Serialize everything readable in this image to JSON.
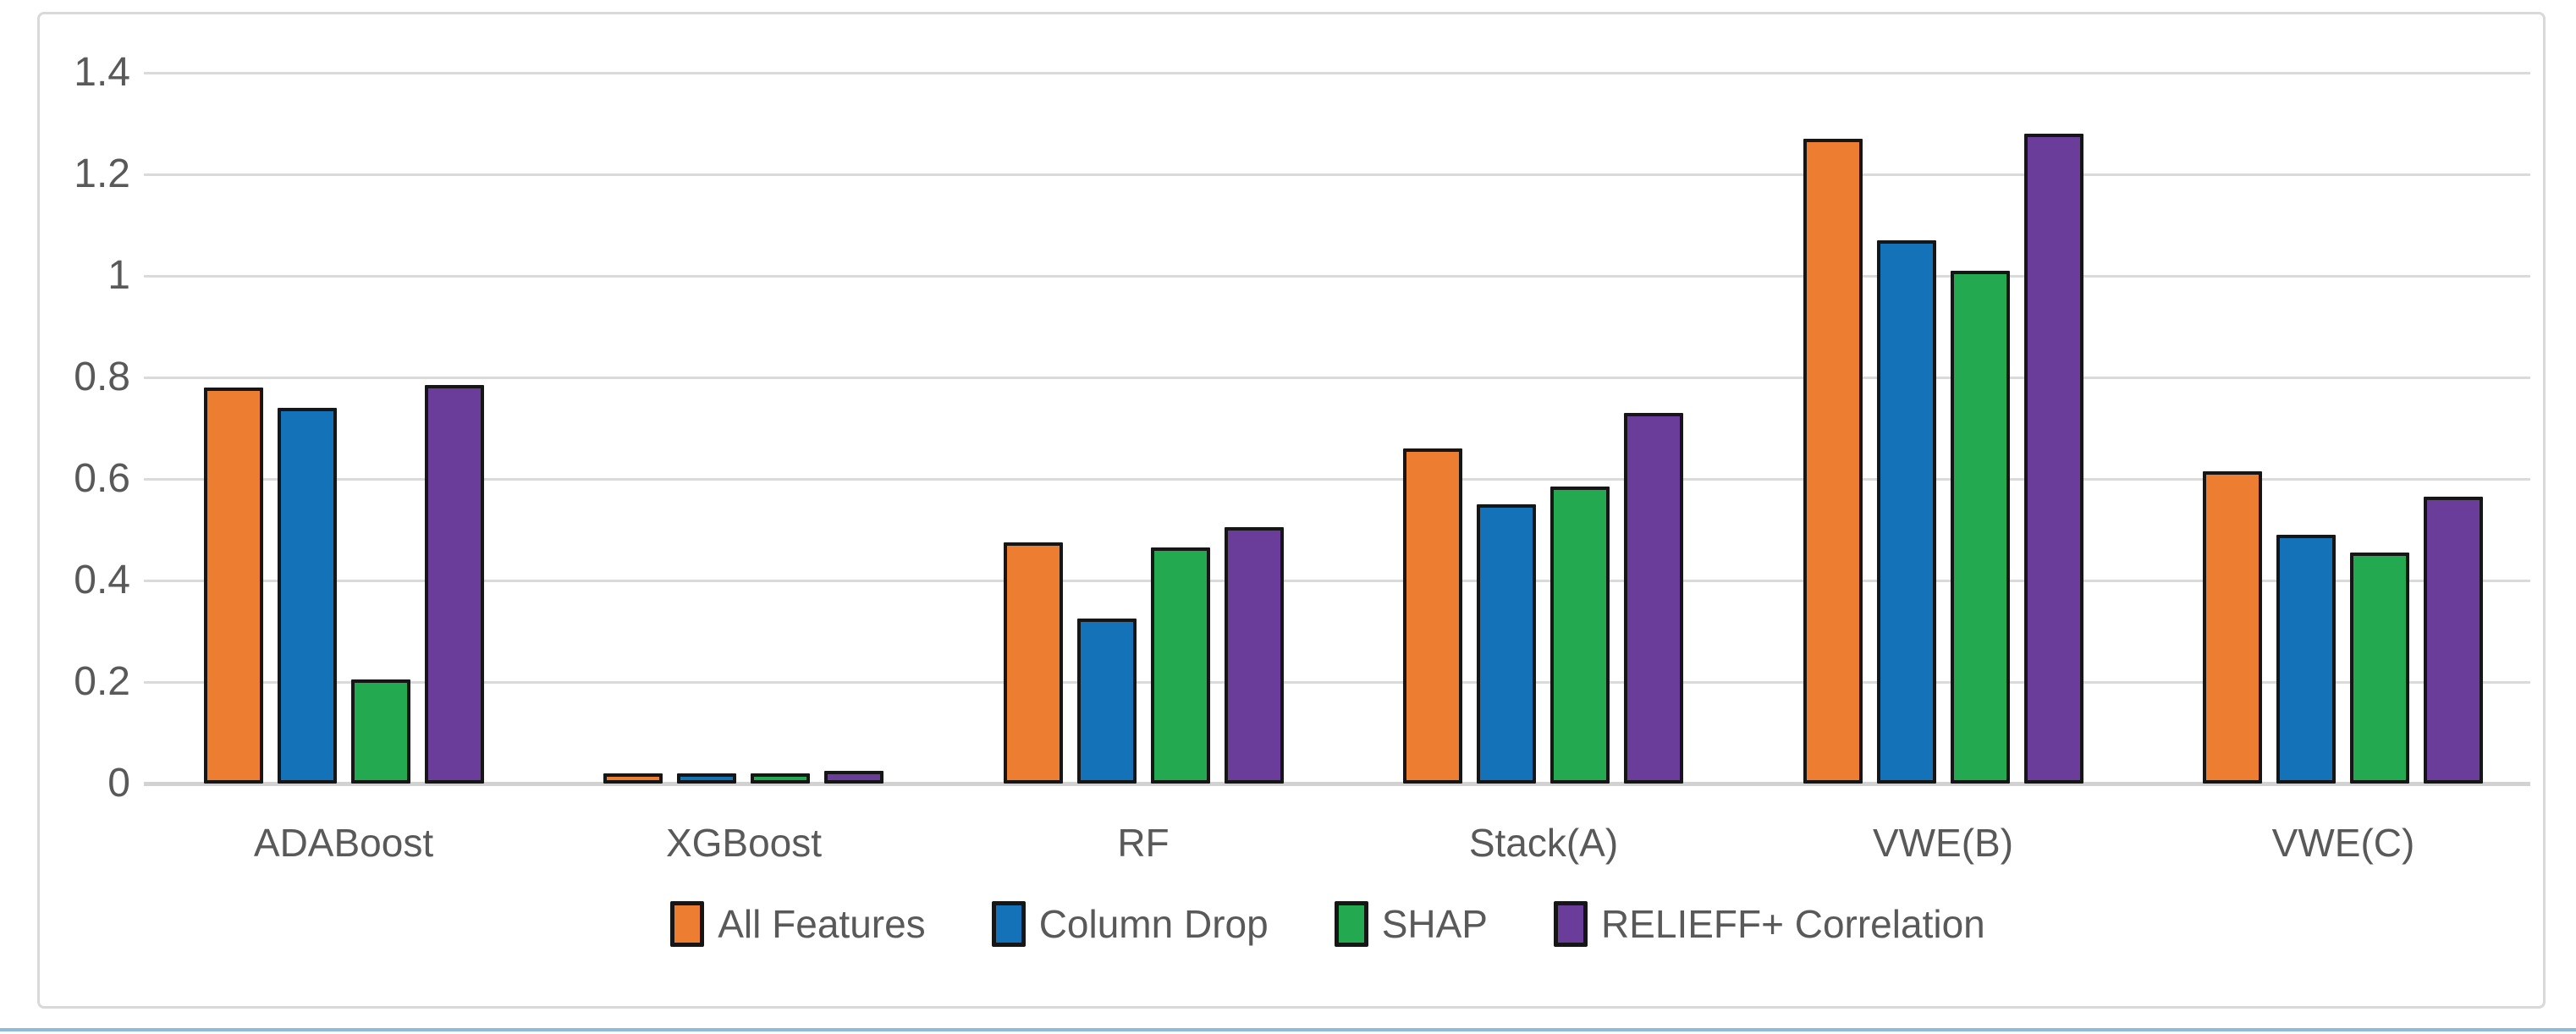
{
  "chart_data": {
    "type": "bar",
    "title": "",
    "xlabel": "",
    "ylabel": "",
    "categories": [
      "ADABoost",
      "XGBoost",
      "RF",
      "Stack(A)",
      "VWE(B)",
      "VWE(C)"
    ],
    "series": [
      {
        "name": "All Features",
        "color": "#ED7D31",
        "values": [
          0.78,
          0.02,
          0.475,
          0.66,
          1.27,
          0.615
        ]
      },
      {
        "name": "Column Drop",
        "color": "#1472B9",
        "values": [
          0.74,
          0.02,
          0.325,
          0.55,
          1.07,
          0.49
        ]
      },
      {
        "name": "SHAP",
        "color": "#23A94F",
        "values": [
          0.205,
          0.02,
          0.465,
          0.585,
          1.01,
          0.455
        ]
      },
      {
        "name": "RELIEFF+ Correlation",
        "color": "#6A3D9A",
        "values": [
          0.785,
          0.025,
          0.505,
          0.73,
          1.28,
          0.565
        ]
      }
    ],
    "y_ticks": [
      "0",
      "0.2",
      "0.4",
      "0.6",
      "0.8",
      "1",
      "1.2",
      "1.4"
    ],
    "y_tick_step": 0.2,
    "ylim": [
      0,
      1.4
    ],
    "grid": true,
    "legend_position": "bottom"
  },
  "colors": {
    "bar_border": "#161616",
    "gridline": "#dadada",
    "axis_line": "#d2d2d2",
    "axis_text": "#595959",
    "frame_border": "#d9d9d9",
    "bottom_divider": "#8fb9e0"
  }
}
